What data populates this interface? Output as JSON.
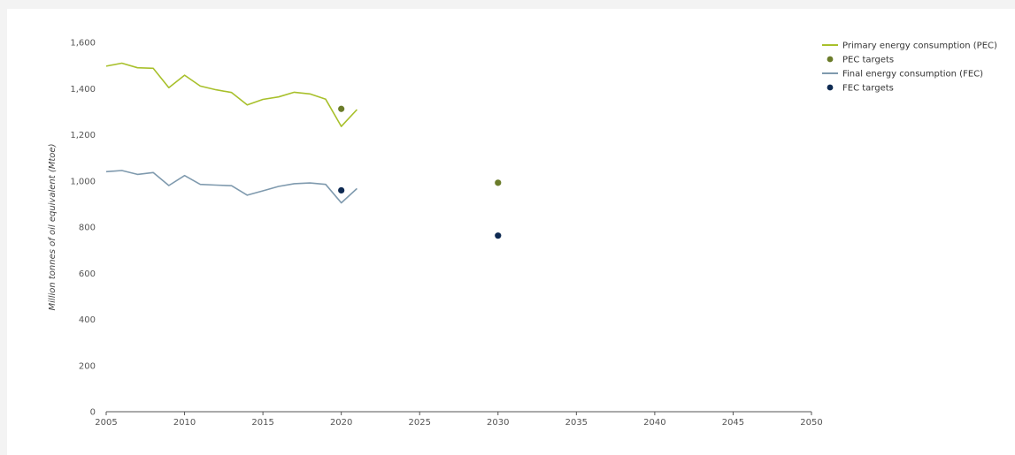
{
  "chart_data": {
    "type": "line",
    "title": "",
    "xlabel": "",
    "ylabel": "Million tonnes of oil equivalent (Mtoe)",
    "xlim": [
      2005,
      2050
    ],
    "ylim": [
      0,
      1600
    ],
    "x_ticks": [
      "2005",
      "2010",
      "2015",
      "2020",
      "2025",
      "2030",
      "2035",
      "2040",
      "2045",
      "2050"
    ],
    "y_ticks": [
      "0",
      "200",
      "400",
      "600",
      "800",
      "1,000",
      "1,200",
      "1,400",
      "1,600"
    ],
    "grid": false,
    "legend_position": "top-right",
    "series": [
      {
        "name": "Primary energy consumption (PEC)",
        "kind": "line",
        "color": "#a8c02b",
        "x": [
          2005,
          2006,
          2007,
          2008,
          2009,
          2010,
          2011,
          2012,
          2013,
          2014,
          2015,
          2016,
          2017,
          2018,
          2019,
          2020,
          2021
        ],
        "y": [
          1497,
          1510,
          1490,
          1488,
          1404,
          1458,
          1411,
          1395,
          1383,
          1329,
          1353,
          1364,
          1384,
          1377,
          1354,
          1236,
          1309
        ]
      },
      {
        "name": "PEC targets",
        "kind": "points",
        "color": "#6b7c2a",
        "x": [
          2020,
          2030
        ],
        "y": [
          1312,
          992
        ]
      },
      {
        "name": "Final energy consumption (FEC)",
        "kind": "line",
        "color": "#7f9aae",
        "x": [
          2005,
          2006,
          2007,
          2008,
          2009,
          2010,
          2011,
          2012,
          2013,
          2014,
          2015,
          2016,
          2017,
          2018,
          2019,
          2020,
          2021
        ],
        "y": [
          1040,
          1045,
          1028,
          1036,
          980,
          1023,
          985,
          982,
          979,
          938,
          957,
          976,
          988,
          991,
          985,
          905,
          967
        ]
      },
      {
        "name": "FEC targets",
        "kind": "points",
        "color": "#0e2a52",
        "x": [
          2020,
          2030
        ],
        "y": [
          959,
          763
        ]
      }
    ]
  }
}
